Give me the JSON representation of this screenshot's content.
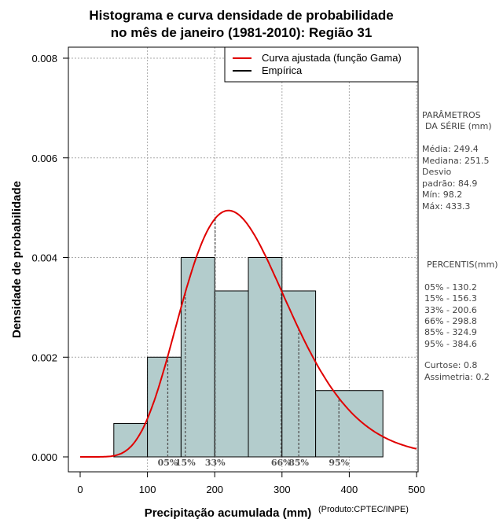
{
  "chart_data": {
    "type": "histogram",
    "title_line1": "Histograma e curva densidade de probabilidade",
    "title_line2": "no mês de janeiro (1981-2010): Região 31",
    "xlabel": "Precipitação acumulada (mm)",
    "ylabel": "Densidade de probabilidade",
    "credit": "(Produto:CPTEC/INPE)",
    "xlim": [
      0,
      500
    ],
    "ylim": [
      0,
      0.008
    ],
    "x_ticks": [
      "0",
      "100",
      "200",
      "300",
      "400",
      "500"
    ],
    "y_ticks": [
      "0.000",
      "0.002",
      "0.004",
      "0.006",
      "0.008"
    ],
    "bins": [
      {
        "from": 50,
        "to": 100,
        "density": 0.00067
      },
      {
        "from": 100,
        "to": 150,
        "density": 0.002
      },
      {
        "from": 150,
        "to": 200,
        "density": 0.004
      },
      {
        "from": 200,
        "to": 250,
        "density": 0.00333
      },
      {
        "from": 250,
        "to": 300,
        "density": 0.004
      },
      {
        "from": 300,
        "to": 350,
        "density": 0.00333
      },
      {
        "from": 350,
        "to": 450,
        "density": 0.00133
      }
    ],
    "fit": {
      "name": "gamma",
      "mean": 249.4,
      "sd": 84.9
    },
    "legend": [
      {
        "label": "Curva ajustada (função Gama)",
        "color": "#e00000"
      },
      {
        "label": "Empírica",
        "color": "#000000"
      }
    ],
    "percentile_markers": [
      {
        "label": "05%",
        "value": 130.2
      },
      {
        "label": "15%",
        "value": 156.3
      },
      {
        "label": "33%",
        "value": 200.6
      },
      {
        "label": "66%",
        "value": 298.8
      },
      {
        "label": "85%",
        "value": 324.9
      },
      {
        "label": "95%",
        "value": 384.6
      }
    ],
    "colors": {
      "bar_fill": "#b3cccc",
      "curve": "#e00000",
      "grid": "#aaaaaa"
    }
  },
  "side_panel": {
    "params_title_1": "PARÂMETROS",
    "params_title_2": "DA SÉRIE (mm)",
    "params": [
      "Média:  249.4",
      "Mediana:  251.5",
      "Desvio",
      "padrão:  84.9",
      "Mín:  98.2",
      "Máx:  433.3"
    ],
    "percentis_title": "PERCENTIS(mm)",
    "percentis": [
      "05% -  130.2",
      "15% -  156.3",
      "33% -  200.6",
      "66% -  298.8",
      "85% -  324.9",
      "95% -  384.6"
    ],
    "stats": [
      "Curtose:  0.8",
      "Assimetria:  0.2"
    ]
  }
}
